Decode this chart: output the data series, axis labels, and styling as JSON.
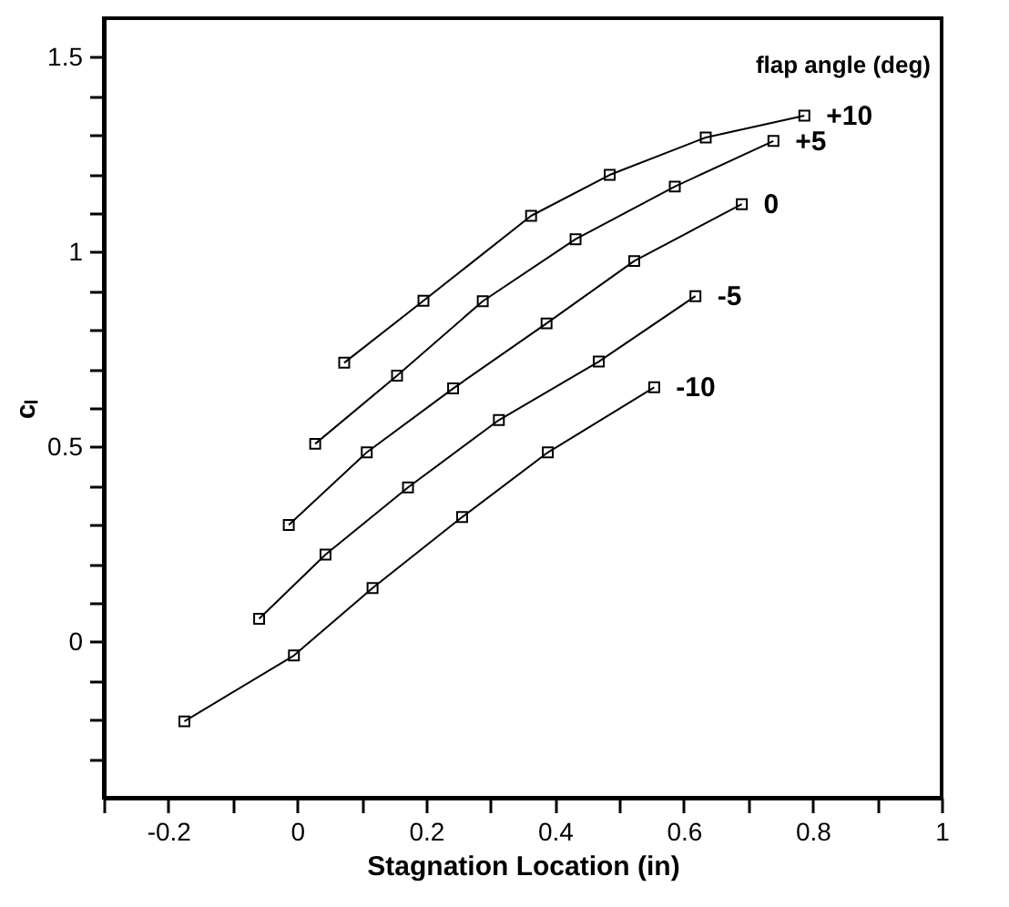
{
  "chart_data": {
    "type": "line",
    "xlabel": "Stagnation Location (in)",
    "ylabel": "cₗ",
    "legend_title": "flap angle (deg)",
    "legend": false,
    "grid": false,
    "marker": "square",
    "line_style": "solid",
    "xlim": [
      -0.3,
      1.0
    ],
    "ylim": [
      -0.4,
      1.6
    ],
    "xticks": [
      {
        "value": -0.3,
        "label": null
      },
      -0.2,
      {
        "value": -0.1,
        "label": null
      },
      0,
      {
        "value": 0.1,
        "label": null
      },
      0.2,
      {
        "value": 0.3,
        "label": null
      },
      0.4,
      {
        "value": 0.5,
        "label": null
      },
      0.6,
      {
        "value": 0.7,
        "label": null
      },
      0.8,
      {
        "value": 0.9,
        "label": null
      },
      1
    ],
    "yticks": [
      {
        "value": -0.3,
        "label": null
      },
      {
        "value": -0.2,
        "label": null
      },
      {
        "value": -0.1,
        "label": null
      },
      0,
      {
        "value": 0.1,
        "label": null
      },
      {
        "value": 0.2,
        "label": null
      },
      {
        "value": 0.3,
        "label": null
      },
      {
        "value": 0.4,
        "label": null
      },
      0.5,
      {
        "value": 0.6,
        "label": null
      },
      {
        "value": 0.7,
        "label": null
      },
      {
        "value": 0.8,
        "label": null
      },
      {
        "value": 0.9,
        "label": null
      },
      1,
      {
        "value": 1.1,
        "label": null
      },
      {
        "value": 1.2,
        "label": null
      },
      {
        "value": 1.3,
        "label": null
      },
      {
        "value": 1.4,
        "label": null
      },
      1.5
    ],
    "series": [
      {
        "name": "+10",
        "color": "#000000",
        "x": [
          0.073,
          0.196,
          0.363,
          0.485,
          0.634,
          0.787
        ],
        "values": [
          0.716,
          0.875,
          1.093,
          1.198,
          1.294,
          1.35
        ]
      },
      {
        "name": "+5",
        "color": "#000000",
        "x": [
          0.028,
          0.155,
          0.288,
          0.432,
          0.586,
          0.739
        ],
        "values": [
          0.508,
          0.683,
          0.874,
          1.033,
          1.168,
          1.285
        ]
      },
      {
        "name": "0",
        "color": "#000000",
        "x": [
          -0.013,
          0.108,
          0.242,
          0.387,
          0.523,
          0.69
        ],
        "values": [
          0.3,
          0.486,
          0.65,
          0.817,
          0.977,
          1.123
        ]
      },
      {
        "name": "-5",
        "color": "#000000",
        "x": [
          -0.059,
          0.044,
          0.172,
          0.313,
          0.468,
          0.618
        ],
        "values": [
          0.059,
          0.224,
          0.396,
          0.569,
          0.719,
          0.887
        ]
      },
      {
        "name": "-10",
        "color": "#000000",
        "x": [
          -0.175,
          -0.005,
          0.117,
          0.256,
          0.389,
          0.554
        ],
        "values": [
          -0.204,
          -0.035,
          0.138,
          0.32,
          0.486,
          0.653
        ]
      }
    ]
  }
}
